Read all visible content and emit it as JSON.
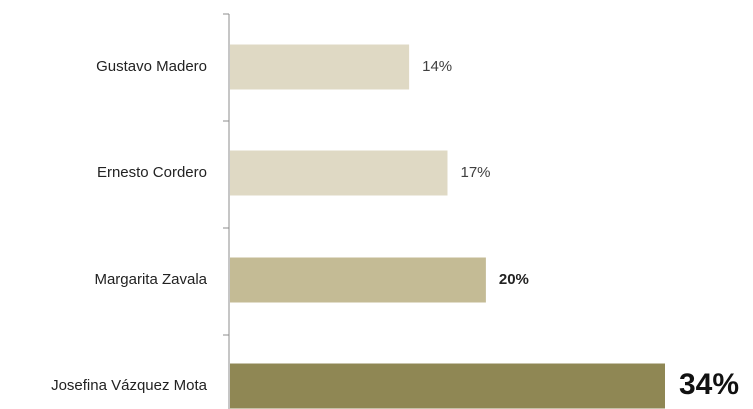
{
  "chart_data": {
    "type": "bar",
    "orientation": "horizontal",
    "title": "",
    "xlabel": "",
    "ylabel": "",
    "categories": [
      "Gustavo Madero",
      "Ernesto Cordero",
      "Margarita Zavala",
      "Josefina Vázquez Mota"
    ],
    "values": [
      14,
      17,
      20,
      34
    ],
    "value_labels": [
      "14%",
      "17%",
      "20%",
      "34%"
    ],
    "bar_colors": [
      "#dfd9c4",
      "#dfd9c4",
      "#c4bb95",
      "#8f8754"
    ],
    "xlim": [
      0,
      34
    ],
    "grid": false,
    "legend": "none"
  }
}
